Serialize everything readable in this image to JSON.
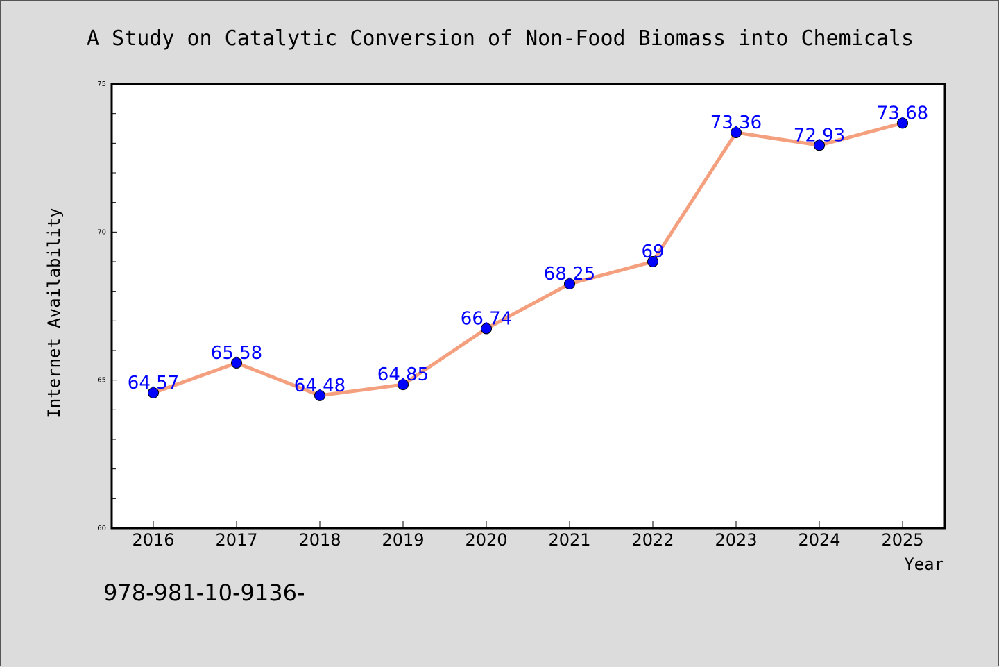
{
  "chart_data": {
    "type": "line",
    "title": "A Study on Catalytic Conversion of Non-Food Biomass into Chemicals",
    "xlabel": "Year",
    "ylabel": "Internet Availability",
    "categories": [
      "2016",
      "2017",
      "2018",
      "2019",
      "2020",
      "2021",
      "2022",
      "2023",
      "2024",
      "2025"
    ],
    "series": [
      {
        "values": [
          64.57,
          65.58,
          64.48,
          64.85,
          66.74,
          68.25,
          69,
          73.36,
          72.93,
          73.68
        ],
        "data_labels": [
          "64.57",
          "65.58",
          "64.48",
          "64.85",
          "66.74",
          "68.25",
          "69",
          "73.36",
          "72.93",
          "73.68"
        ]
      }
    ],
    "ylim": [
      60,
      75
    ],
    "yticks": [
      60,
      65,
      70,
      75
    ],
    "grid": false,
    "line_color": "#f4a07e",
    "marker_color": "#0000ff",
    "label_color": "#0000ff"
  },
  "footer": {
    "text": "978-981-10-9136-"
  }
}
